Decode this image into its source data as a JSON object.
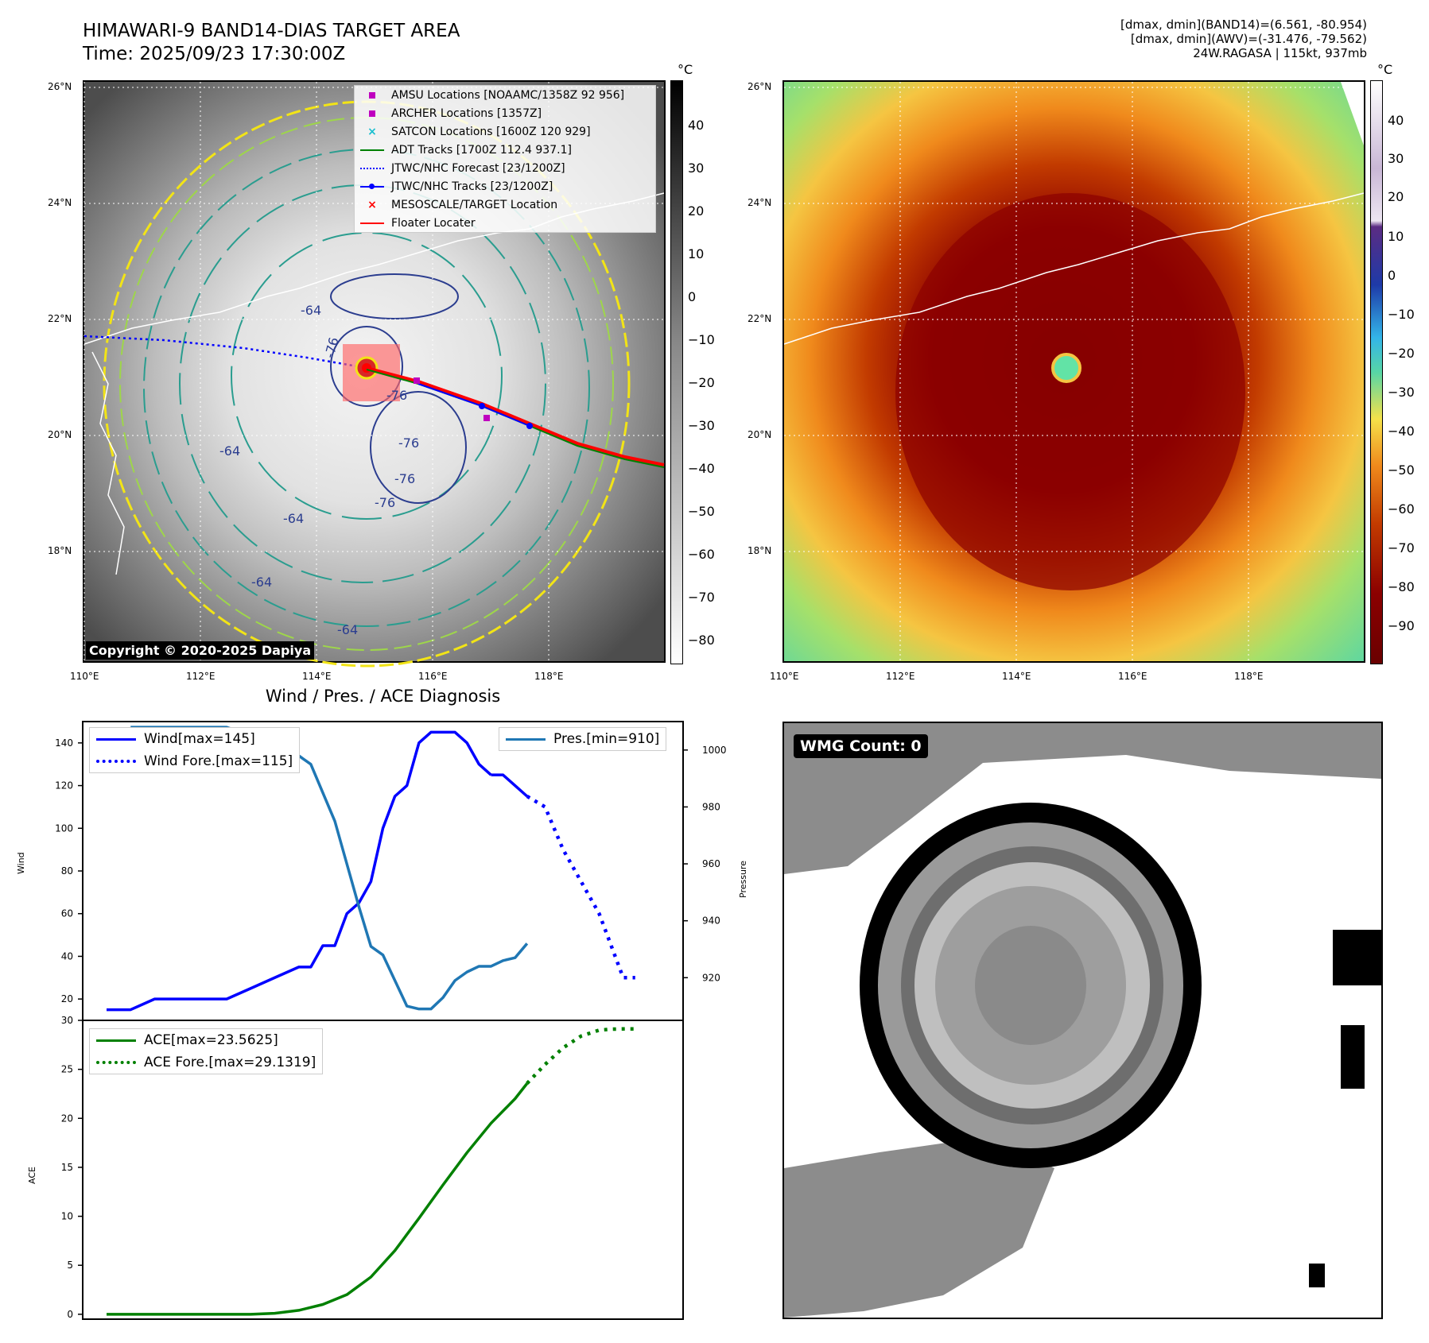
{
  "header": {
    "title_line1": "HIMAWARI-9 BAND14-DIAS TARGET AREA",
    "title_line2": "Time: 2025/09/23 17:30:00Z",
    "meta_line1": "[dmax, dmin](BAND14)=(6.561, -80.954)",
    "meta_line2": "[dmax, dmin](AWV)=(-31.476, -79.562)",
    "meta_line3": "24W.RAGASA | 115kt, 937mb"
  },
  "map_ticks": {
    "lat": [
      "26°N",
      "24°N",
      "22°N",
      "20°N",
      "18°N"
    ],
    "lon": [
      "110°E",
      "112°E",
      "114°E",
      "116°E",
      "118°E"
    ]
  },
  "left_map": {
    "copyright": "Copyright © 2020-2025 Dapiya",
    "legend": [
      {
        "label": "AMSU Locations [NOAAMC/1358Z 92 956]",
        "icon": "square-marker",
        "color": "#bf00bf"
      },
      {
        "label": "ARCHER Locations [1357Z]",
        "icon": "square-marker",
        "color": "#bf00bf"
      },
      {
        "label": "SATCON Locations [1600Z 120 929]",
        "icon": "x-marker",
        "color": "#17becf"
      },
      {
        "label": "ADT Tracks [1700Z 112.4 937.1]",
        "icon": "solid-line",
        "color": "#008000"
      },
      {
        "label": "JTWC/NHC Forecast [23/1200Z]",
        "icon": "dotted-line",
        "color": "#0000ff"
      },
      {
        "label": "JTWC/NHC Tracks [23/1200Z]",
        "icon": "line-dot",
        "color": "#0000ff"
      },
      {
        "label": "MESOSCALE/TARGET Location",
        "icon": "x-marker",
        "color": "#ff0000"
      },
      {
        "label": "Floater Locater",
        "icon": "solid-line",
        "color": "#ff0000"
      }
    ],
    "contour_labels": [
      "-76",
      "-64",
      "-76",
      "-64",
      "-76",
      "-76",
      "-64",
      "-64",
      "-64",
      "-76"
    ],
    "colorbar_unit": "°C",
    "colorbar_ticks": [
      "40",
      "30",
      "20",
      "10",
      "0",
      "−10",
      "−20",
      "−30",
      "−40",
      "−50",
      "−60",
      "−70",
      "−80"
    ]
  },
  "right_map": {
    "colorbar_unit": "°C",
    "colorbar_ticks": [
      "40",
      "30",
      "20",
      "10",
      "0",
      "−10",
      "−20",
      "−30",
      "−40",
      "−50",
      "−60",
      "−70",
      "−80",
      "−90"
    ]
  },
  "diagnosis": {
    "title": "Wind / Pres. / ACE Diagnosis",
    "wind_ylabel": "Wind",
    "pres_ylabel": "Pressure",
    "ace_ylabel": "ACE",
    "legend_wind": "Wind[max=145]",
    "legend_wind_fore": "Wind Fore.[max=115]",
    "legend_pres": "Pres.[min=910]",
    "legend_ace": "ACE[max=23.5625]",
    "legend_ace_fore": "ACE Fore.[max=29.1319]"
  },
  "wmg": {
    "label": "WMG Count: 0"
  },
  "colors": {
    "wind": "#0000ff",
    "pressure": "#1f77b4",
    "ace": "#008000",
    "floater": "#ff0000"
  },
  "chart_data": [
    {
      "type": "line",
      "name": "wind-pressure",
      "xlim": [
        0,
        42
      ],
      "ylim": [
        10,
        150
      ],
      "ylim_right": [
        905,
        1010
      ],
      "yticks": [
        20,
        40,
        60,
        80,
        100,
        120,
        140
      ],
      "yticks_right": [
        920,
        940,
        960,
        980,
        1000
      ],
      "series": [
        {
          "name": "Wind[max=145]",
          "axis": "left",
          "style": "solid",
          "x": [
            0,
            2,
            4,
            6,
            8,
            10,
            12,
            14,
            16,
            17,
            18,
            19,
            20,
            21,
            22,
            23,
            24,
            25,
            26,
            27,
            28,
            29,
            30,
            31,
            32
          ],
          "y": [
            15,
            15,
            20,
            20,
            20,
            20,
            25,
            30,
            35,
            35,
            45,
            45,
            60,
            65,
            75,
            100,
            115,
            120,
            140,
            145,
            145,
            145,
            140,
            130,
            125
          ]
        },
        {
          "name": "Wind[max=145]",
          "axis": "left",
          "style": "solid",
          "x": [
            32,
            33,
            34,
            35
          ],
          "y": [
            125,
            125,
            120,
            115
          ]
        },
        {
          "name": "Wind Fore.[max=115]",
          "axis": "left",
          "style": "dotted",
          "x": [
            35,
            36.5,
            38,
            39.5,
            41,
            42,
            43,
            44
          ],
          "y": [
            115,
            110,
            90,
            75,
            60,
            45,
            30,
            30
          ]
        }
      ]
    },
    {
      "type": "line",
      "name": "pressure",
      "series": [
        {
          "name": "Pres.[min=910]",
          "axis": "right",
          "style": "solid",
          "x": [
            2,
            4,
            6,
            8,
            10,
            12,
            14,
            15,
            16,
            17,
            18,
            19,
            20,
            21,
            22,
            23,
            24,
            25,
            26,
            27,
            28,
            29,
            30,
            31,
            32,
            33,
            34,
            35
          ],
          "y": [
            1008,
            1008,
            1008,
            1008,
            1008,
            1005,
            1003,
            1000,
            998,
            995,
            985,
            975,
            960,
            945,
            931,
            928,
            919,
            910,
            909,
            909,
            913,
            919,
            922,
            924,
            924,
            926,
            927,
            932
          ]
        }
      ]
    },
    {
      "type": "line",
      "name": "ace",
      "xlim": [
        0,
        42
      ],
      "ylim": [
        -0.5,
        30
      ],
      "yticks": [
        0,
        5,
        10,
        15,
        20,
        25,
        30
      ],
      "series": [
        {
          "name": "ACE[max=23.5625]",
          "style": "solid",
          "x": [
            0,
            2,
            4,
            6,
            8,
            10,
            12,
            14,
            16,
            18,
            20,
            22,
            24,
            26,
            28,
            30,
            32,
            34,
            35
          ],
          "y": [
            0,
            0,
            0,
            0,
            0,
            0,
            0,
            0.1,
            0.4,
            1.0,
            2.0,
            3.8,
            6.5,
            9.8,
            13.2,
            16.5,
            19.5,
            22.0,
            23.5625
          ]
        },
        {
          "name": "ACE Fore.[max=29.1319]",
          "style": "dotted",
          "x": [
            35,
            36.5,
            38,
            39.5,
            41,
            42,
            43,
            44
          ],
          "y": [
            23.5625,
            25.5,
            27.2,
            28.4,
            29.0,
            29.1,
            29.13,
            29.1319
          ]
        }
      ]
    }
  ]
}
